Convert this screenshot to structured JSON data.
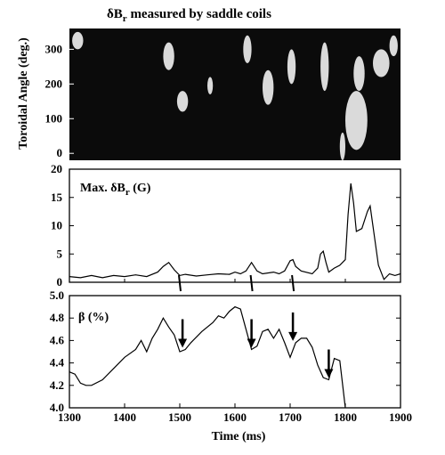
{
  "figure": {
    "title": "δB",
    "title_sub": "r",
    "title_rest": " measured by saddle coils",
    "xlabel": "Time (ms)"
  },
  "chart_data": [
    {
      "type": "heatmap",
      "ylabel": "Toroidal Angle (deg.)",
      "xlim": [
        1300,
        1900
      ],
      "ylim": [
        -20,
        360
      ],
      "yticks": [
        0,
        100,
        200,
        300
      ],
      "grid": false,
      "colors": {
        "dark": "#0b0b0b",
        "light": "#ffffff"
      },
      "bright_regions": [
        {
          "t_start": 1305,
          "t_end": 1325,
          "angle_start": 300,
          "angle_end": 350
        },
        {
          "t_start": 1470,
          "t_end": 1490,
          "angle_start": 240,
          "angle_end": 320
        },
        {
          "t_start": 1495,
          "t_end": 1515,
          "angle_start": 120,
          "angle_end": 180
        },
        {
          "t_start": 1550,
          "t_end": 1560,
          "angle_start": 170,
          "angle_end": 220
        },
        {
          "t_start": 1615,
          "t_end": 1630,
          "angle_start": 260,
          "angle_end": 340
        },
        {
          "t_start": 1650,
          "t_end": 1670,
          "angle_start": 140,
          "angle_end": 240
        },
        {
          "t_start": 1695,
          "t_end": 1710,
          "angle_start": 200,
          "angle_end": 300
        },
        {
          "t_start": 1755,
          "t_end": 1770,
          "angle_start": 180,
          "angle_end": 320
        },
        {
          "t_start": 1790,
          "t_end": 1800,
          "angle_start": -20,
          "angle_end": 60
        },
        {
          "t_start": 1800,
          "t_end": 1840,
          "angle_start": 10,
          "angle_end": 180
        },
        {
          "t_start": 1815,
          "t_end": 1835,
          "angle_start": 180,
          "angle_end": 280
        },
        {
          "t_start": 1850,
          "t_end": 1880,
          "angle_start": 220,
          "angle_end": 300
        },
        {
          "t_start": 1880,
          "t_end": 1895,
          "angle_start": 280,
          "angle_end": 340
        }
      ]
    },
    {
      "type": "line",
      "label": "Max. δB",
      "label_sub": "r",
      "label_rest": " (G)",
      "xlim": [
        1300,
        1900
      ],
      "ylim": [
        0,
        20
      ],
      "yticks": [
        0,
        5,
        10,
        15,
        20
      ],
      "grid": false,
      "x": [
        1300,
        1320,
        1340,
        1360,
        1380,
        1400,
        1420,
        1440,
        1460,
        1470,
        1480,
        1490,
        1500,
        1510,
        1530,
        1550,
        1570,
        1590,
        1600,
        1610,
        1620,
        1630,
        1640,
        1650,
        1670,
        1680,
        1690,
        1700,
        1705,
        1710,
        1720,
        1740,
        1750,
        1755,
        1760,
        1765,
        1770,
        1780,
        1790,
        1800,
        1805,
        1810,
        1815,
        1820,
        1830,
        1840,
        1845,
        1850,
        1860,
        1870,
        1880,
        1890,
        1900
      ],
      "values": [
        1,
        0.8,
        1.2,
        0.8,
        1.2,
        1.0,
        1.3,
        1.0,
        1.8,
        2.8,
        3.5,
        2.2,
        1.2,
        1.4,
        1.1,
        1.3,
        1.5,
        1.4,
        1.8,
        1.5,
        2.0,
        3.5,
        2.0,
        1.5,
        1.8,
        1.5,
        2.0,
        3.8,
        4.0,
        2.8,
        2.0,
        1.5,
        2.5,
        5.0,
        5.5,
        3.5,
        1.8,
        2.5,
        3.0,
        4.0,
        12,
        17.5,
        14,
        9,
        9.5,
        12.5,
        13.5,
        10,
        3,
        0.5,
        1.5,
        1.2,
        1.5
      ],
      "markers": [
        1500,
        1630,
        1705
      ]
    },
    {
      "type": "line",
      "label": "β (%)",
      "xlim": [
        1300,
        1900
      ],
      "ylim": [
        4.0,
        5.0
      ],
      "xticks": [
        1300,
        1400,
        1500,
        1600,
        1700,
        1800,
        1900
      ],
      "yticks": [
        4.0,
        4.2,
        4.4,
        4.6,
        4.8,
        5.0
      ],
      "grid": false,
      "x": [
        1300,
        1310,
        1320,
        1330,
        1340,
        1360,
        1380,
        1400,
        1420,
        1430,
        1440,
        1450,
        1460,
        1470,
        1480,
        1490,
        1500,
        1510,
        1520,
        1540,
        1560,
        1570,
        1580,
        1590,
        1600,
        1610,
        1620,
        1630,
        1640,
        1650,
        1660,
        1670,
        1680,
        1690,
        1700,
        1710,
        1720,
        1730,
        1740,
        1750,
        1760,
        1770,
        1780,
        1790,
        1800
      ],
      "values": [
        4.32,
        4.3,
        4.22,
        4.2,
        4.2,
        4.25,
        4.35,
        4.45,
        4.52,
        4.6,
        4.5,
        4.62,
        4.7,
        4.8,
        4.72,
        4.65,
        4.5,
        4.52,
        4.58,
        4.68,
        4.76,
        4.82,
        4.8,
        4.86,
        4.9,
        4.88,
        4.7,
        4.52,
        4.55,
        4.68,
        4.7,
        4.62,
        4.7,
        4.58,
        4.45,
        4.58,
        4.62,
        4.62,
        4.54,
        4.38,
        4.27,
        4.25,
        4.44,
        4.42,
        4.0
      ],
      "arrows": [
        1505,
        1630,
        1705,
        1770
      ]
    }
  ]
}
